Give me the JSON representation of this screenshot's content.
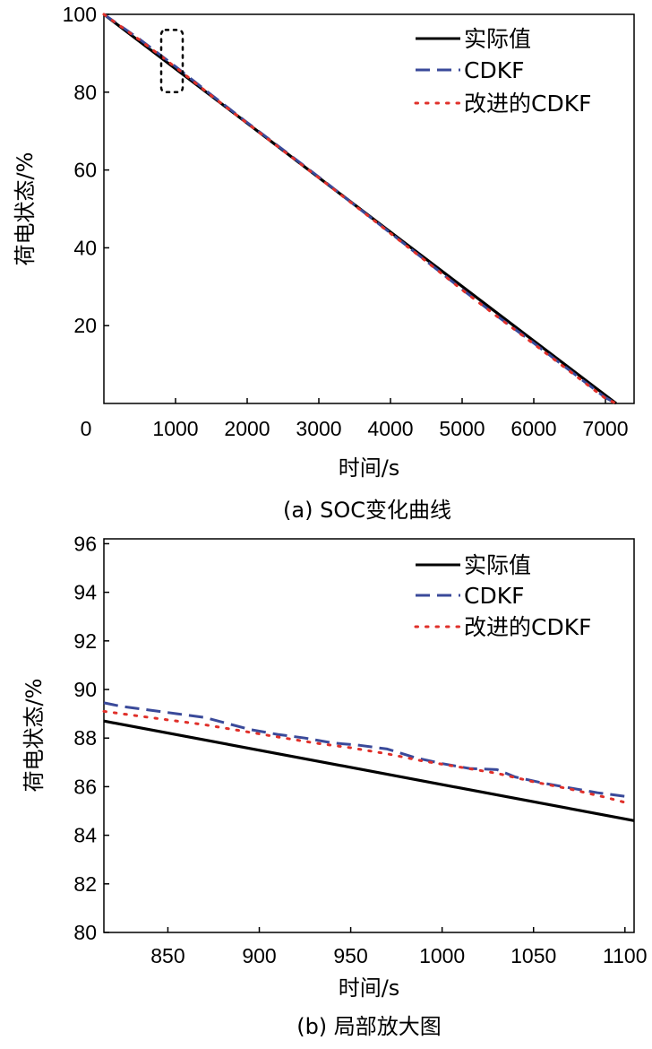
{
  "legend_labels": {
    "actual": "实际值",
    "cdkf": "CDKF",
    "improved": "改进的CDKF"
  },
  "colors": {
    "actual": "#000000",
    "cdkf": "#3a4a9a",
    "improved": "#e0302a"
  },
  "chart_data": [
    {
      "type": "line",
      "caption": "(a) SOC变化曲线",
      "xlabel": "时间/s",
      "ylabel": "荷电状态/%",
      "xlim": [
        0,
        7400
      ],
      "ylim": [
        0,
        100
      ],
      "origin_label": "0",
      "x_ticks": [
        1000,
        2000,
        3000,
        4000,
        5000,
        6000,
        7000
      ],
      "x_tick_labels": [
        "1000",
        "2000",
        "3000",
        "4000",
        "5000",
        "6000",
        "7000"
      ],
      "y_ticks": [
        20,
        40,
        60,
        80,
        100
      ],
      "y_tick_labels": [
        "20",
        "40",
        "60",
        "80",
        "100"
      ],
      "annotation": {
        "type": "dashed-box",
        "x_range": [
          800,
          1100
        ],
        "y_range": [
          80,
          96
        ]
      },
      "series": [
        {
          "name": "实际值",
          "style": "solid",
          "x": [
            0,
            7150
          ],
          "y": [
            100,
            0
          ]
        },
        {
          "name": "CDKF",
          "style": "dashed",
          "x": [
            0,
            500,
            1000,
            1500,
            2000,
            2500,
            3000,
            3500,
            4000,
            4500,
            5000,
            5500,
            6000,
            6500,
            7000,
            7150
          ],
          "y": [
            100,
            93.6,
            86.6,
            79.3,
            72.2,
            65.2,
            58.2,
            51.0,
            43.8,
            36.6,
            29.3,
            22.3,
            15.5,
            8.5,
            1.5,
            0
          ]
        },
        {
          "name": "改进的CDKF",
          "style": "dotted",
          "x": [
            0,
            500,
            1000,
            1500,
            2000,
            2500,
            3000,
            3500,
            4000,
            4500,
            5000,
            5500,
            6000,
            6500,
            7000,
            7150
          ],
          "y": [
            100,
            93.4,
            86.4,
            79.1,
            72.0,
            65.0,
            58.0,
            50.9,
            43.7,
            36.5,
            29.2,
            22.2,
            15.3,
            8.3,
            1.3,
            0
          ]
        }
      ]
    },
    {
      "type": "line",
      "caption": "(b) 局部放大图",
      "xlabel": "时间/s",
      "ylabel": "荷电状态/%",
      "xlim": [
        815,
        1105
      ],
      "ylim": [
        80,
        96.2
      ],
      "x_ticks": [
        850,
        900,
        950,
        1000,
        1050,
        1100
      ],
      "x_tick_labels": [
        "850",
        "900",
        "950",
        "1000",
        "1050",
        "1100"
      ],
      "y_ticks": [
        80,
        82,
        84,
        86,
        88,
        90,
        92,
        94,
        96
      ],
      "y_tick_labels": [
        "80",
        "82",
        "84",
        "86",
        "88",
        "90",
        "92",
        "94",
        "96"
      ],
      "series": [
        {
          "name": "实际值",
          "style": "solid",
          "x": [
            815,
            1105
          ],
          "y": [
            88.7,
            84.6
          ]
        },
        {
          "name": "CDKF",
          "style": "dashed",
          "x": [
            815,
            825,
            840,
            855,
            870,
            880,
            895,
            910,
            925,
            940,
            955,
            970,
            985,
            1000,
            1015,
            1030,
            1040,
            1055,
            1070,
            1085,
            1100
          ],
          "y": [
            89.45,
            89.3,
            89.15,
            89.0,
            88.85,
            88.65,
            88.35,
            88.15,
            88.0,
            87.8,
            87.7,
            87.55,
            87.2,
            86.95,
            86.75,
            86.7,
            86.4,
            86.15,
            85.95,
            85.75,
            85.6
          ]
        },
        {
          "name": "改进的CDKF",
          "style": "dotted",
          "x": [
            815,
            830,
            850,
            870,
            890,
            910,
            930,
            950,
            970,
            990,
            1010,
            1030,
            1050,
            1070,
            1090,
            1100
          ],
          "y": [
            89.1,
            88.95,
            88.75,
            88.55,
            88.3,
            88.05,
            87.8,
            87.6,
            87.35,
            87.05,
            86.8,
            86.55,
            86.2,
            85.9,
            85.55,
            85.35
          ]
        }
      ]
    }
  ]
}
